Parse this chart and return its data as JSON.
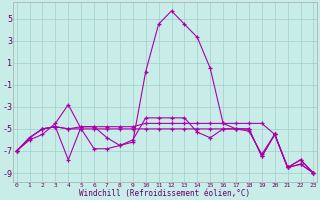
{
  "bg_color": "#c8ede8",
  "line_color": "#aa00aa",
  "grid_color": "#a0d0c8",
  "xlim_min": -0.3,
  "xlim_max": 23.3,
  "ylim_min": -9.8,
  "ylim_max": 6.5,
  "xticks": [
    0,
    1,
    2,
    3,
    4,
    5,
    6,
    7,
    8,
    9,
    10,
    11,
    12,
    13,
    14,
    15,
    16,
    17,
    18,
    19,
    20,
    21,
    22,
    23
  ],
  "yticks": [
    -9,
    -7,
    -5,
    -3,
    -1,
    1,
    3,
    5
  ],
  "xlabel": "Windchill (Refroidissement éolien,°C)",
  "line1_x": [
    0,
    1,
    2,
    3,
    4,
    5,
    6,
    7,
    8,
    9,
    10,
    11,
    12,
    13,
    14,
    15,
    16,
    17,
    18,
    19,
    20,
    21,
    22,
    23
  ],
  "line1_y": [
    -7.0,
    -6.0,
    -5.5,
    -4.5,
    -2.8,
    -5.0,
    -6.8,
    -6.8,
    -6.5,
    -6.2,
    0.2,
    4.5,
    5.7,
    4.5,
    3.3,
    0.5,
    -4.5,
    -5.0,
    -5.2,
    -7.3,
    -5.5,
    -8.5,
    -7.8,
    -9.0
  ],
  "line2_x": [
    0,
    1,
    2,
    3,
    4,
    5,
    6,
    7,
    8,
    9,
    10,
    11,
    12,
    13,
    14,
    15,
    16,
    17,
    18,
    19,
    20,
    21,
    22,
    23
  ],
  "line2_y": [
    -7.0,
    -5.8,
    -5.0,
    -4.8,
    -7.8,
    -4.8,
    -4.8,
    -4.8,
    -4.8,
    -4.8,
    -4.5,
    -4.5,
    -4.5,
    -4.5,
    -4.5,
    -4.5,
    -4.5,
    -4.5,
    -4.5,
    -4.5,
    -5.5,
    -8.5,
    -8.2,
    -9.0
  ],
  "line3_x": [
    0,
    1,
    2,
    3,
    4,
    5,
    6,
    7,
    8,
    9,
    10,
    11,
    12,
    13,
    14,
    15,
    16,
    17,
    18,
    19,
    20,
    21,
    22,
    23
  ],
  "line3_y": [
    -7.0,
    -5.8,
    -5.0,
    -4.8,
    -5.0,
    -4.8,
    -4.8,
    -5.8,
    -6.5,
    -6.0,
    -4.0,
    -4.0,
    -4.0,
    -4.0,
    -5.3,
    -5.8,
    -5.0,
    -5.0,
    -5.0,
    -7.5,
    -5.5,
    -8.5,
    -7.8,
    -9.0
  ],
  "line4_x": [
    0,
    1,
    2,
    3,
    4,
    5,
    6,
    7,
    8,
    9,
    10,
    11,
    12,
    13,
    14,
    15,
    16,
    17,
    18,
    19,
    20,
    21,
    22,
    23
  ],
  "line4_y": [
    -7.0,
    -5.8,
    -5.0,
    -4.8,
    -5.0,
    -5.0,
    -5.0,
    -5.0,
    -5.0,
    -5.0,
    -5.0,
    -5.0,
    -5.0,
    -5.0,
    -5.0,
    -5.0,
    -5.0,
    -5.0,
    -5.0,
    -7.5,
    -5.5,
    -8.5,
    -8.2,
    -9.0
  ],
  "tick_fontsize_x": 4.5,
  "tick_fontsize_y": 6.0,
  "xlabel_fontsize": 5.5
}
